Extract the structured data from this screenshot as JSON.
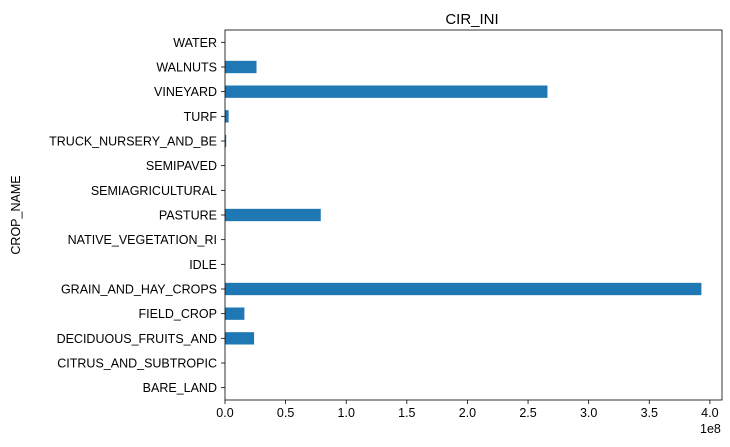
{
  "chart_data": {
    "type": "bar",
    "orientation": "horizontal",
    "title": "CIR_INI",
    "ylabel": "CROP_NAME",
    "xlabel": "",
    "x_scale_label": "1e8",
    "x_scale_factor": 100000000,
    "xlim": [
      0,
      4.1
    ],
    "x_ticks": [
      0,
      0.5,
      1,
      1.5,
      2,
      2.5,
      3,
      3.5,
      4
    ],
    "x_tick_labels": [
      "0.0",
      "0.5",
      "1.0",
      "1.5",
      "2.0",
      "2.5",
      "3.0",
      "3.5",
      "4.0"
    ],
    "categories": [
      "BARE_LAND",
      "CITRUS_AND_SUBTROPIC",
      "DECIDUOUS_FRUITS_AND",
      "FIELD_CROP",
      "GRAIN_AND_HAY_CROPS",
      "IDLE",
      "NATIVE_VEGETATION_RI",
      "PASTURE",
      "SEMIAGRICULTURAL",
      "SEMIPAVED",
      "TRUCK_NURSERY_AND_BE",
      "TURF",
      "VINEYARD",
      "WALNUTS",
      "WATER"
    ],
    "values": [
      0,
      0,
      0.24,
      0.16,
      3.93,
      0,
      0,
      0.79,
      0,
      0,
      0.01,
      0.03,
      2.66,
      0.26,
      0
    ],
    "bar_color": "#1f77b4",
    "grid": false,
    "legend": "none"
  }
}
